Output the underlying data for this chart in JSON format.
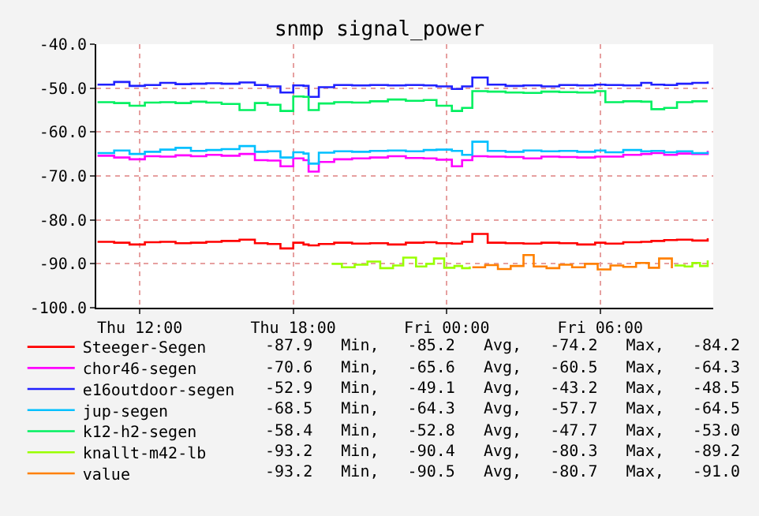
{
  "chart_data": {
    "type": "step",
    "title": "snmp signal_power",
    "x": [
      "--01-04T10:21",
      "--01-04T11:00",
      "--01-04T11:36",
      "--01-04T12:12",
      "--01-04T12:48",
      "--01-04T13:24",
      "--01-04T14:00",
      "--01-04T14:36",
      "--01-04T15:12",
      "--01-04T15:54",
      "--01-04T16:30",
      "--01-04T17:00",
      "--01-04T17:30",
      "--01-04T18:00",
      "--01-04T18:24",
      "--01-04T18:36",
      "--01-04T19:00",
      "--01-04T19:36",
      "--01-04T20:18",
      "--01-04T21:00",
      "--01-04T21:42",
      "--01-04T22:24",
      "--01-04T23:06",
      "--01-04T23:36",
      "--01-05T00:12",
      "--01-05T00:36",
      "--01-05T01:00",
      "--01-05T01:36",
      "--01-05T02:18",
      "--01-05T03:00",
      "--01-05T03:42",
      "--01-05T04:24",
      "--01-05T05:06",
      "--01-05T05:48",
      "--01-05T06:12",
      "--01-05T06:54",
      "--01-05T07:36",
      "--01-05T08:00",
      "--01-05T08:30",
      "--01-05T09:00",
      "--01-05T09:36",
      "--01-05T10:12"
    ],
    "series": [
      {
        "name": "Steeger-Segen",
        "color": "#ff0000",
        "values": [
          -85.0,
          -85.2,
          -85.6,
          -85.1,
          -85.0,
          -85.3,
          -85.2,
          -85.0,
          -84.8,
          -84.5,
          -85.3,
          -85.5,
          -86.5,
          -85.2,
          -85.6,
          -85.8,
          -85.5,
          -85.2,
          -85.4,
          -85.3,
          -85.6,
          -85.2,
          -85.1,
          -85.3,
          -85.4,
          -85.0,
          -83.2,
          -85.2,
          -85.3,
          -85.4,
          -85.2,
          -85.3,
          -85.6,
          -85.2,
          -85.4,
          -85.1,
          -85.0,
          -84.8,
          -84.6,
          -84.5,
          -84.7,
          -84.2
        ]
      },
      {
        "name": "chor46-segen",
        "color": "#ff00ff",
        "values": [
          -65.4,
          -65.8,
          -66.2,
          -65.5,
          -65.6,
          -65.3,
          -65.5,
          -65.2,
          -65.4,
          -65.0,
          -66.4,
          -66.5,
          -67.8,
          -66.0,
          -66.4,
          -69.0,
          -66.8,
          -66.2,
          -66.0,
          -65.8,
          -65.5,
          -65.9,
          -66.0,
          -66.3,
          -67.8,
          -66.4,
          -65.5,
          -65.6,
          -65.7,
          -66.0,
          -65.6,
          -65.7,
          -65.8,
          -65.6,
          -65.6,
          -65.2,
          -65.0,
          -64.8,
          -65.2,
          -64.9,
          -65.0,
          -64.3
        ]
      },
      {
        "name": "e16outdoor-segen",
        "color": "#2020ff",
        "values": [
          -49.2,
          -48.6,
          -49.5,
          -49.3,
          -48.8,
          -49.1,
          -49.0,
          -48.9,
          -49.0,
          -48.7,
          -49.3,
          -49.6,
          -51.0,
          -49.4,
          -49.5,
          -52.0,
          -49.8,
          -49.3,
          -49.4,
          -49.3,
          -49.4,
          -49.3,
          -49.4,
          -49.6,
          -50.2,
          -49.6,
          -47.6,
          -49.2,
          -49.5,
          -49.4,
          -49.6,
          -49.3,
          -49.4,
          -49.2,
          -49.3,
          -49.4,
          -48.8,
          -49.2,
          -49.3,
          -49.0,
          -48.8,
          -48.5
        ]
      },
      {
        "name": "jup-segen",
        "color": "#00c0ff",
        "values": [
          -64.8,
          -64.2,
          -65.0,
          -64.5,
          -64.0,
          -63.6,
          -64.3,
          -64.1,
          -63.9,
          -63.2,
          -64.5,
          -64.4,
          -65.8,
          -64.6,
          -64.9,
          -67.2,
          -64.7,
          -64.4,
          -64.5,
          -64.3,
          -64.2,
          -64.4,
          -64.1,
          -64.0,
          -64.3,
          -65.2,
          -62.2,
          -64.3,
          -64.5,
          -64.2,
          -64.4,
          -64.3,
          -64.5,
          -64.2,
          -64.6,
          -64.1,
          -64.4,
          -64.3,
          -64.6,
          -64.4,
          -64.8,
          -64.5
        ]
      },
      {
        "name": "k12-h2-segen",
        "color": "#00f060",
        "values": [
          -53.2,
          -53.4,
          -54.0,
          -53.3,
          -53.2,
          -53.4,
          -53.1,
          -53.3,
          -53.6,
          -55.0,
          -53.4,
          -53.8,
          -55.2,
          -51.9,
          -52.0,
          -55.0,
          -53.5,
          -53.2,
          -53.3,
          -53.0,
          -52.6,
          -52.9,
          -52.7,
          -54.0,
          -55.2,
          -54.5,
          -50.7,
          -50.8,
          -51.0,
          -51.1,
          -50.8,
          -50.9,
          -51.0,
          -50.7,
          -53.2,
          -53.0,
          -53.1,
          -54.8,
          -54.5,
          -53.2,
          -53.0,
          -53.0
        ]
      },
      {
        "name": "knallt-m42-lb",
        "color": "#99ff00",
        "x": [
          "--01-04T19:30",
          "--01-04T19:54",
          "--01-04T20:24",
          "--01-04T20:54",
          "--01-04T21:24",
          "--01-04T21:54",
          "--01-04T22:18",
          "--01-04T22:48",
          "--01-04T23:12",
          "--01-04T23:30",
          "--01-04T23:54",
          "--01-05T00:18",
          "--01-05T00:36",
          "--01-05T00:54",
          "--01-05T01:00",
          "--01-05T08:54",
          "--01-05T09:18",
          "--01-05T09:36",
          "--01-05T09:54",
          "--01-05T10:12"
        ],
        "values": [
          -90.0,
          -90.8,
          -90.2,
          -89.5,
          -91.0,
          -90.4,
          -88.6,
          -90.6,
          -90.0,
          -88.8,
          -90.9,
          -90.5,
          -91.0,
          -90.6,
          null,
          -90.4,
          -90.6,
          -89.8,
          -90.5,
          -89.2
        ]
      },
      {
        "name": "value",
        "color": "#ff8000",
        "x": [
          "--01-05T01:00",
          "--01-05T01:30",
          "--01-05T02:00",
          "--01-05T02:30",
          "--01-05T03:00",
          "--01-05T03:24",
          "--01-05T03:54",
          "--01-05T04:24",
          "--01-05T04:54",
          "--01-05T05:24",
          "--01-05T05:54",
          "--01-05T06:24",
          "--01-05T06:54",
          "--01-05T07:24",
          "--01-05T07:54",
          "--01-05T08:18",
          "--01-05T08:48"
        ],
        "values": [
          -90.8,
          -90.3,
          -91.2,
          -90.5,
          -88.0,
          -90.6,
          -91.0,
          -90.2,
          -90.8,
          -90.0,
          -91.3,
          -90.4,
          -90.7,
          -89.8,
          -90.9,
          -88.8,
          -91.0
        ]
      }
    ],
    "xlim": [
      "--01-04T10:18",
      "--01-05T10:25"
    ],
    "xticks": [
      {
        "value": "--01-04T12:00",
        "label": "Thu 12:00"
      },
      {
        "value": "--01-04T18:00",
        "label": "Thu 18:00"
      },
      {
        "value": "--01-05T00:00",
        "label": "Fri 00:00"
      },
      {
        "value": "--01-05T06:00",
        "label": "Fri 06:00"
      }
    ],
    "ylim": [
      -100,
      -40
    ],
    "yticks": [
      {
        "value": -100,
        "label": "-100.0"
      },
      {
        "value": -90,
        "label": "-90.0"
      },
      {
        "value": -80,
        "label": "-80.0"
      },
      {
        "value": -70,
        "label": "-70.0"
      },
      {
        "value": -60,
        "label": "-60.0"
      },
      {
        "value": -50,
        "label": "-50.0"
      },
      {
        "value": -40,
        "label": "-40.0"
      }
    ],
    "grid": true,
    "legend": "bottom",
    "annotations": [
      "-87.9   Min,   -85.2   Avg,   -74.2   Max,   -84.2",
      "-70.6   Min,   -65.6   Avg,   -60.5   Max,   -64.3",
      "-52.9   Min,   -49.1   Avg,   -43.2   Max,   -48.5",
      "-68.5   Min,   -64.3   Avg,   -57.7   Max,   -64.5",
      "-58.4   Min,   -52.8   Avg,   -47.7   Max,   -53.0",
      "-93.2   Min,   -90.4   Avg,   -80.3   Max,   -89.2",
      "-93.2   Min,   -90.5   Avg,   -80.7   Max,   -91.0"
    ]
  }
}
